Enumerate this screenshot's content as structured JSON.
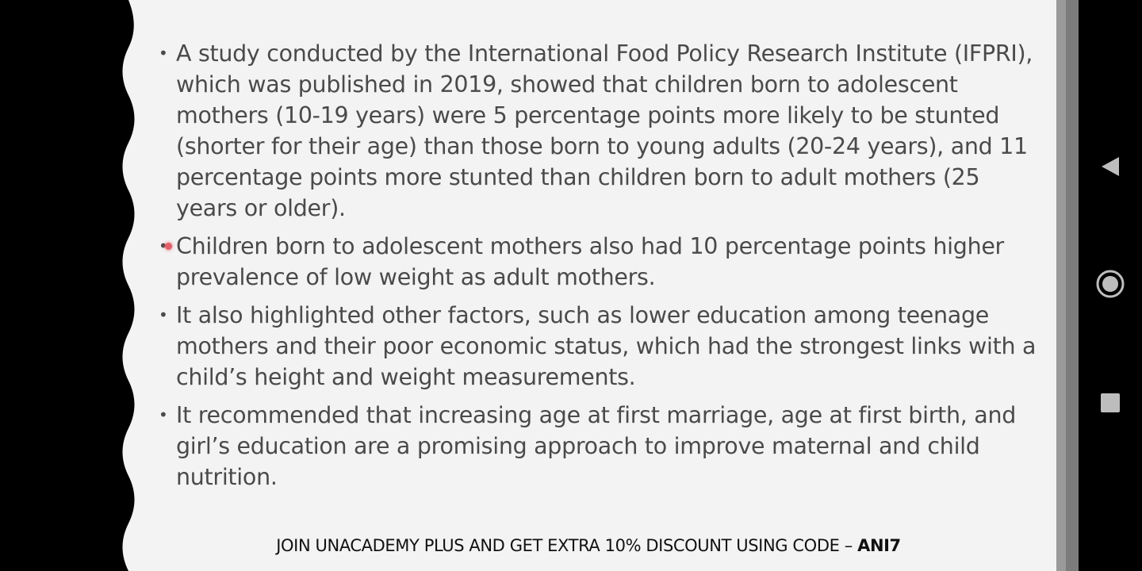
{
  "slide": {
    "bullets": [
      "A study conducted by the International Food Policy Research Institute (IFPRI), which was published in 2019, showed that children born to adolescent mothers (10-19 years) were 5 percentage points more likely to be stunted (shorter for their age) than those born to young adults (20-24 years), and 11 percentage points more stunted than children born to adult mothers (25 years or older).",
      "Children born to adolescent mothers also had 10 percentage points higher prevalence of low weight as adult mothers.",
      "It also highlighted other factors, such as lower education among teenage mothers and their poor economic status, which had the strongest links with a child’s height and weight measurements.",
      "It recommended that increasing age at first marriage, age at first birth, and girl’s education are a promising approach to improve maternal and child nutrition."
    ],
    "bullet_symbol": "•",
    "footer_text": "JOIN UNACADEMY PLUS AND GET EXTRA 10% DISCOUNT USING CODE – ",
    "footer_code": "ANI7"
  },
  "navigation": {
    "back_icon": "back-triangle-icon",
    "home_icon": "home-circle-icon",
    "recents_icon": "recents-square-icon"
  },
  "colors": {
    "slide_background": "#f3f3f3",
    "text": "#4a4a4a",
    "pointer": "#e4606a",
    "nav_icon": "#bdbdbd"
  }
}
